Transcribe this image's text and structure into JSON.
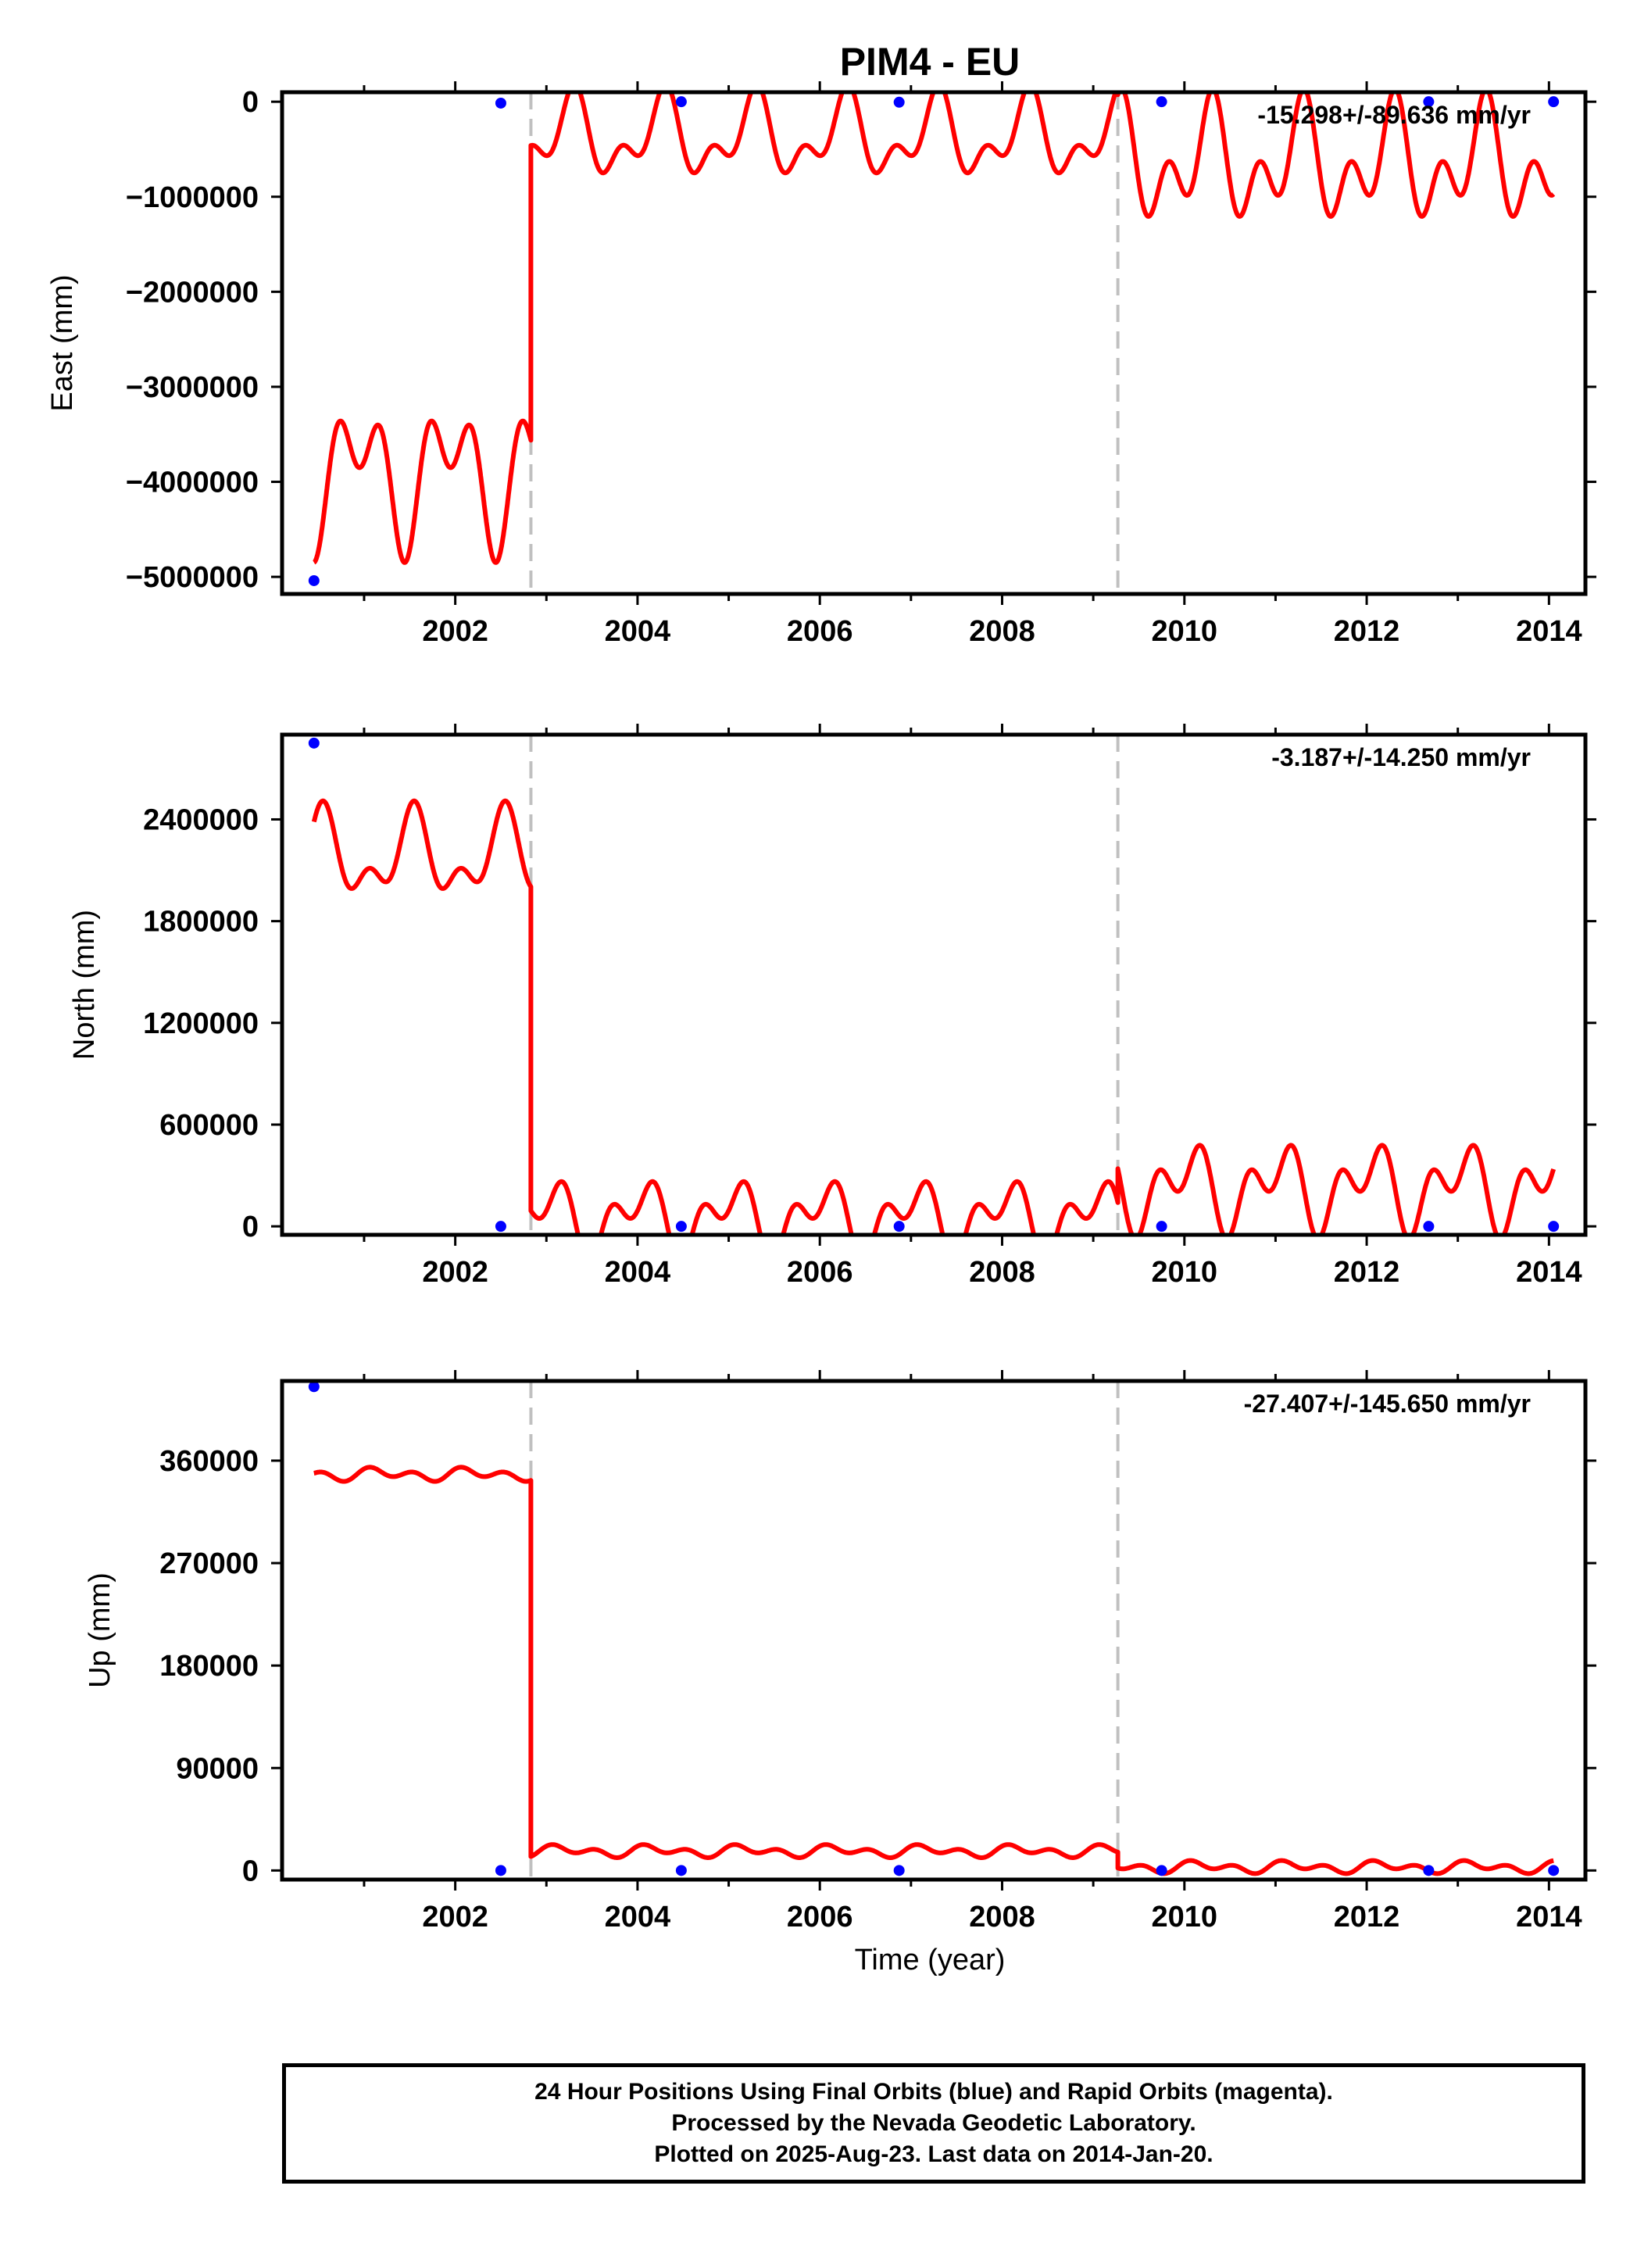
{
  "figure_title": "PIM4 - EU",
  "x_axis_title": "Time (year)",
  "footer": {
    "line1": "24 Hour Positions Using Final Orbits (blue) and Rapid Orbits (magenta).",
    "line2": "Processed by the Nevada Geodetic Laboratory.",
    "line3": "Plotted on 2025-Aug-23. Last data on 2014-Jan-20."
  },
  "colors": {
    "model": "#ff0000",
    "final_orbits": "#0000ff",
    "offset_lines": "#c0c0c0",
    "axes": "#000000"
  },
  "chart_data": [
    {
      "type": "line",
      "title": "PIM4 - EU",
      "ylabel": "East (mm)",
      "xlabel": "",
      "rate_annotation": "-15.298+/-89.636 mm/yr",
      "xlim": [
        2000.1,
        2014.4
      ],
      "ylim": [
        -5180000,
        100000
      ],
      "xticks": [
        2002,
        2004,
        2006,
        2008,
        2010,
        2012,
        2014
      ],
      "xtick_labels": [
        "2002",
        "2004",
        "2006",
        "2008",
        "2010",
        "2012",
        "2014"
      ],
      "yticks": [
        0,
        -1000000,
        -2000000,
        -3000000,
        -4000000,
        -5000000
      ],
      "ytick_labels": [
        "0",
        "−1000000",
        "−2000000",
        "−3000000",
        "−4000000",
        "−5000000"
      ],
      "offset_dates": [
        2002.83,
        2009.27
      ],
      "final_orbit_points": {
        "x": [
          2000.45,
          2002.5,
          2004.48,
          2006.87,
          2009.75,
          2012.68,
          2014.05
        ],
        "y": [
          -5040000,
          -15000,
          0,
          -5000,
          0,
          0,
          0
        ]
      },
      "model_segments": [
        {
          "x_start": 2000.45,
          "x_end": 2002.83,
          "base": -3900000,
          "annual_amp": 500000,
          "semiannual_amp": 450000,
          "annual_phase": 1.95,
          "semiannual_phase": -0.9
        },
        {
          "x_start": 2002.83,
          "x_end": 2009.27,
          "base": -370000,
          "annual_amp": 340000,
          "semiannual_amp": 230000,
          "annual_phase": -0.15,
          "semiannual_phase": -2.45
        },
        {
          "x_start": 2009.27,
          "x_end": 2014.05,
          "base": -650000,
          "annual_amp": 400000,
          "semiannual_amp": 400000,
          "annual_phase": -0.15,
          "semiannual_phase": -2.45
        }
      ]
    },
    {
      "type": "line",
      "title": "",
      "ylabel": "North (mm)",
      "xlabel": "",
      "rate_annotation": "-3.187+/-14.250 mm/yr",
      "xlim": [
        2000.1,
        2014.4
      ],
      "ylim": [
        -50000,
        2900000
      ],
      "xticks": [
        2002,
        2004,
        2006,
        2008,
        2010,
        2012,
        2014
      ],
      "xtick_labels": [
        "2002",
        "2004",
        "2006",
        "2008",
        "2010",
        "2012",
        "2014"
      ],
      "yticks": [
        0,
        600000,
        1200000,
        1800000,
        2400000
      ],
      "ytick_labels": [
        "0",
        "600000",
        "1200000",
        "1800000",
        "2400000"
      ],
      "offset_dates": [
        2002.83,
        2009.27
      ],
      "final_orbit_points": {
        "x": [
          2000.45,
          2002.5,
          2004.48,
          2006.87,
          2009.75,
          2012.68,
          2014.05
        ],
        "y": [
          2850000,
          0,
          0,
          0,
          0,
          0,
          0
        ]
      },
      "model_segments": [
        {
          "x_start": 2000.45,
          "x_end": 2002.83,
          "base": 2180000,
          "annual_amp": 200000,
          "semiannual_amp": 130000,
          "annual_phase": -1.8,
          "semiannual_phase": 0.9
        },
        {
          "x_start": 2002.83,
          "x_end": 2009.27,
          "base": 50000,
          "annual_amp": 150000,
          "semiannual_amp": 130000,
          "annual_phase": 1.4,
          "semiannual_phase": -0.95
        },
        {
          "x_start": 2009.27,
          "x_end": 2014.05,
          "base": 230000,
          "annual_amp": 160000,
          "semiannual_amp": 160000,
          "annual_phase": 1.4,
          "semiannual_phase": -0.95
        }
      ]
    },
    {
      "type": "line",
      "title": "",
      "ylabel": "Up (mm)",
      "xlabel": "Time (year)",
      "rate_annotation": "-27.407+/-145.650 mm/yr",
      "xlim": [
        2000.1,
        2014.4
      ],
      "ylim": [
        -8000,
        430000
      ],
      "xticks": [
        2002,
        2004,
        2006,
        2008,
        2010,
        2012,
        2014
      ],
      "xtick_labels": [
        "2002",
        "2004",
        "2006",
        "2008",
        "2010",
        "2012",
        "2014"
      ],
      "yticks": [
        0,
        90000,
        180000,
        270000,
        360000
      ],
      "ytick_labels": [
        "0",
        "90000",
        "180000",
        "270000",
        "360000"
      ],
      "offset_dates": [
        2002.83,
        2009.27
      ],
      "final_orbit_points": {
        "x": [
          2000.45,
          2002.5,
          2004.48,
          2006.87,
          2009.75,
          2012.68,
          2014.05
        ],
        "y": [
          425000,
          0,
          0,
          0,
          0,
          0,
          0
        ]
      },
      "model_segments": [
        {
          "x_start": 2000.45,
          "x_end": 2002.83,
          "base": 348000,
          "annual_amp": 3000,
          "semiannual_amp": 4000,
          "annual_phase": 0.5,
          "semiannual_phase": 1.0
        },
        {
          "x_start": 2002.83,
          "x_end": 2009.27,
          "base": 17000,
          "annual_amp": 3000,
          "semiannual_amp": 3500,
          "annual_phase": 0.5,
          "semiannual_phase": 1.0
        },
        {
          "x_start": 2009.27,
          "x_end": 2014.05,
          "base": 3000,
          "annual_amp": 3000,
          "semiannual_amp": 3500,
          "annual_phase": 0.5,
          "semiannual_phase": 1.0
        }
      ]
    }
  ]
}
